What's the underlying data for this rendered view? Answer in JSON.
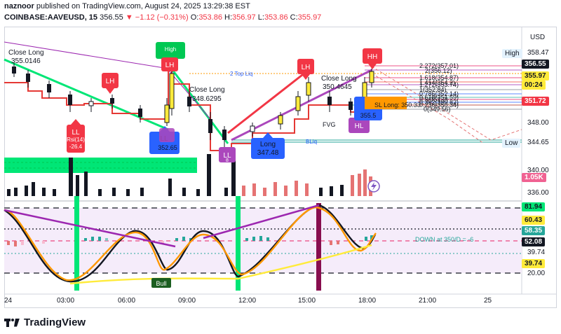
{
  "header": {
    "author": "naznoor",
    "published_text": "published on TradingView.com, August 24, 2025 13:29:38 EST",
    "symbol": "COINBASE:AAVEUSD, 15",
    "price": "356.55",
    "arrow": "▼",
    "change": "−1.12 (−0.31%)",
    "o_label": "O:",
    "o_value": "353.86",
    "h_label": "H:",
    "h_value": "356.97",
    "l_label": "L:",
    "l_value": "353.86",
    "c_label": "C:",
    "c_value": "355.97"
  },
  "price_axis": {
    "currency": "USD",
    "high_label": "High",
    "high_value": "358.47",
    "last_price": "356.55",
    "level_1": "355.97",
    "countdown": "00:24",
    "level_2": "351.72",
    "tick_348": "348.00",
    "low_label": "Low",
    "low_value": "344.65",
    "tick_340": "340.00",
    "volume": "1.05K",
    "tick_336": "336.00"
  },
  "oscillator_axis": {
    "v1": "81.94",
    "v2": "60.43",
    "v3": "58.35",
    "v4": "52.08",
    "v5": "39.74",
    "v6": "39.74",
    "v7": "20.00"
  },
  "time_axis": [
    "24",
    "03:00",
    "06:00",
    "09:00",
    "12:00",
    "15:00",
    "18:00",
    "21:00",
    "25"
  ],
  "annotations": {
    "close_long_1": "Close Long",
    "close_long_1_price": "355.0146",
    "close_long_2": "Close Long",
    "close_long_2_price": "348.6295",
    "close_long_3": "Close Long",
    "close_long_3_price": "350.4645",
    "long_label": "Long",
    "long_price": "347.48",
    "sl_long": "SL Long: 350.33",
    "ll_price_1": "352.65",
    "ll_price_2": "355.5",
    "rsi_label": "Rsi(14)",
    "rsi_value": "-26.4",
    "top_liq": "2 Top Liq",
    "b_liq": "BLiq",
    "fvg": "FVG",
    "bull": "Bull",
    "down_text": "DOWN at 350/D = -6",
    "fib_1": "2.272(357.01)",
    "fib_2": "2(356.12)",
    "fib_3": "1.618(354.87)",
    "fib_4": "1.414(354.2)",
    "fib_5": "1.272(353.74)",
    "fib_6": "1(352.84)",
    "fib_7": "0.786(352.14)",
    "fib_8": "0.618(351.59)",
    "fib_9": "0.5(351.2)",
    "fib_10": "0.382(350.82)",
    "fib_11": "0.236(350.34)",
    "fib_12": "0(349.56)",
    "ll_bubble": "LL",
    "lh_bubble": "LH",
    "hh_bubble": "HH",
    "hl_bubble": "HL",
    "high_bubble": "High",
    "small_8": "8"
  },
  "footer": {
    "brand": "TradingView"
  },
  "colors": {
    "up": "#26a69a",
    "down": "#ef5350",
    "accent_red": "#e91e63",
    "green": "#00e676",
    "purple": "#9c27b0",
    "orange": "#ff9800"
  }
}
